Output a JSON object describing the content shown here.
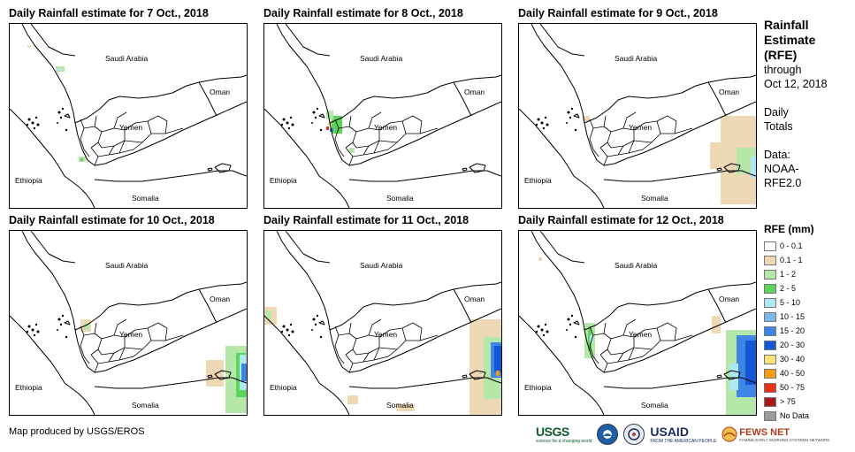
{
  "panels": [
    {
      "title": "Daily Rainfall estimate for 7 Oct., 2018",
      "rain": "p7"
    },
    {
      "title": "Daily Rainfall estimate for 8 Oct., 2018",
      "rain": "p8"
    },
    {
      "title": "Daily Rainfall estimate for 9 Oct., 2018",
      "rain": "p9"
    },
    {
      "title": "Daily Rainfall estimate for 10 Oct., 2018",
      "rain": "p10"
    },
    {
      "title": "Daily Rainfall estimate for 11 Oct., 2018",
      "rain": "p11"
    },
    {
      "title": "Daily Rainfall estimate for 12 Oct., 2018",
      "rain": "p12"
    }
  ],
  "map_labels": {
    "saudi": "Saudi Arabia",
    "oman": "Oman",
    "yemen": "Yemen",
    "ethiopia": "Ethiopia",
    "somalia": "Somalia"
  },
  "sidebar": {
    "title_1": "Rainfall",
    "title_2": "Estimate",
    "title_3": "(RFE)",
    "through": "through",
    "date": "Oct 12, 2018",
    "daily_1": "Daily",
    "daily_2": "Totals",
    "data_1": "Data:",
    "data_2": "NOAA-",
    "data_3": "RFE2.0"
  },
  "legend": {
    "title": "RFE (mm)",
    "items": [
      {
        "label": "0 - 0.1",
        "color": "#ffffff"
      },
      {
        "label": "0.1 - 1",
        "color": "#efd9b4"
      },
      {
        "label": "1 - 2",
        "color": "#b5e8a8"
      },
      {
        "label": "2 - 5",
        "color": "#5dd55a"
      },
      {
        "label": "5 - 10",
        "color": "#aee8f5"
      },
      {
        "label": "10 - 15",
        "color": "#7fb9ec"
      },
      {
        "label": "15 - 20",
        "color": "#3d86e6"
      },
      {
        "label": "20 - 30",
        "color": "#1457d6"
      },
      {
        "label": "30 - 40",
        "color": "#fbe27a"
      },
      {
        "label": "40 - 50",
        "color": "#f59b15"
      },
      {
        "label": "50 - 75",
        "color": "#e83112"
      },
      {
        "label": "> 75",
        "color": "#a71a1a"
      },
      {
        "label": "No Data",
        "color": "#9b9b9b"
      }
    ]
  },
  "footer": {
    "credit": "Map produced by USGS/EROS",
    "usgs": "USGS",
    "usgs_tag": "science for a changing world",
    "usaid": "USAID",
    "usaid_tag": "FROM THE AMERICAN PEOPLE",
    "fews": "FEWS NET",
    "fews_tag": "FAMINE EARLY WARNING SYSTEMS NETWORK"
  }
}
